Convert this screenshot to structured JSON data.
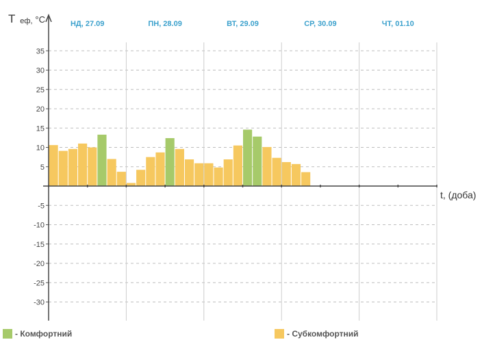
{
  "chart_data": {
    "type": "bar",
    "ylabel_main": "T",
    "ylabel_sub": "еф,",
    "ylabel_unit": "°C",
    "xlabel": "t, (доба)",
    "ylim": [
      -32,
      38
    ],
    "yticks": [
      35,
      30,
      25,
      20,
      15,
      10,
      5,
      -5,
      -10,
      -15,
      -20,
      -25,
      -30
    ],
    "days": [
      "НД, 27.09",
      "ПН, 28.09",
      "ВТ, 29.09",
      "СР, 30.09",
      "ЧТ, 01.10"
    ],
    "bars_per_day": 8,
    "grid": true,
    "series": [
      {
        "values": [
          10.6,
          9.1,
          9.6,
          11.0,
          10.0,
          13.3,
          7.0,
          3.7,
          0.8,
          4.2,
          7.5,
          8.7,
          12.4,
          9.6,
          6.9,
          5.9,
          5.9,
          4.8,
          6.9,
          10.5,
          14.6,
          12.8,
          10.1,
          7.3,
          6.2,
          5.7,
          3.6
        ],
        "categories": [
          "sub",
          "sub",
          "sub",
          "sub",
          "sub",
          "comfort",
          "sub",
          "sub",
          "sub",
          "sub",
          "sub",
          "sub",
          "comfort",
          "sub",
          "sub",
          "sub",
          "sub",
          "sub",
          "sub",
          "sub",
          "comfort",
          "comfort",
          "sub",
          "sub",
          "sub",
          "sub",
          "sub"
        ]
      }
    ],
    "colors": {
      "comfort": "#a6ca6a",
      "sub": "#f6c85f",
      "day_label": "#3aa0cc"
    }
  },
  "legend": {
    "comfort_label": "- Комфортний",
    "sub_label": "- Субкомфортний"
  }
}
